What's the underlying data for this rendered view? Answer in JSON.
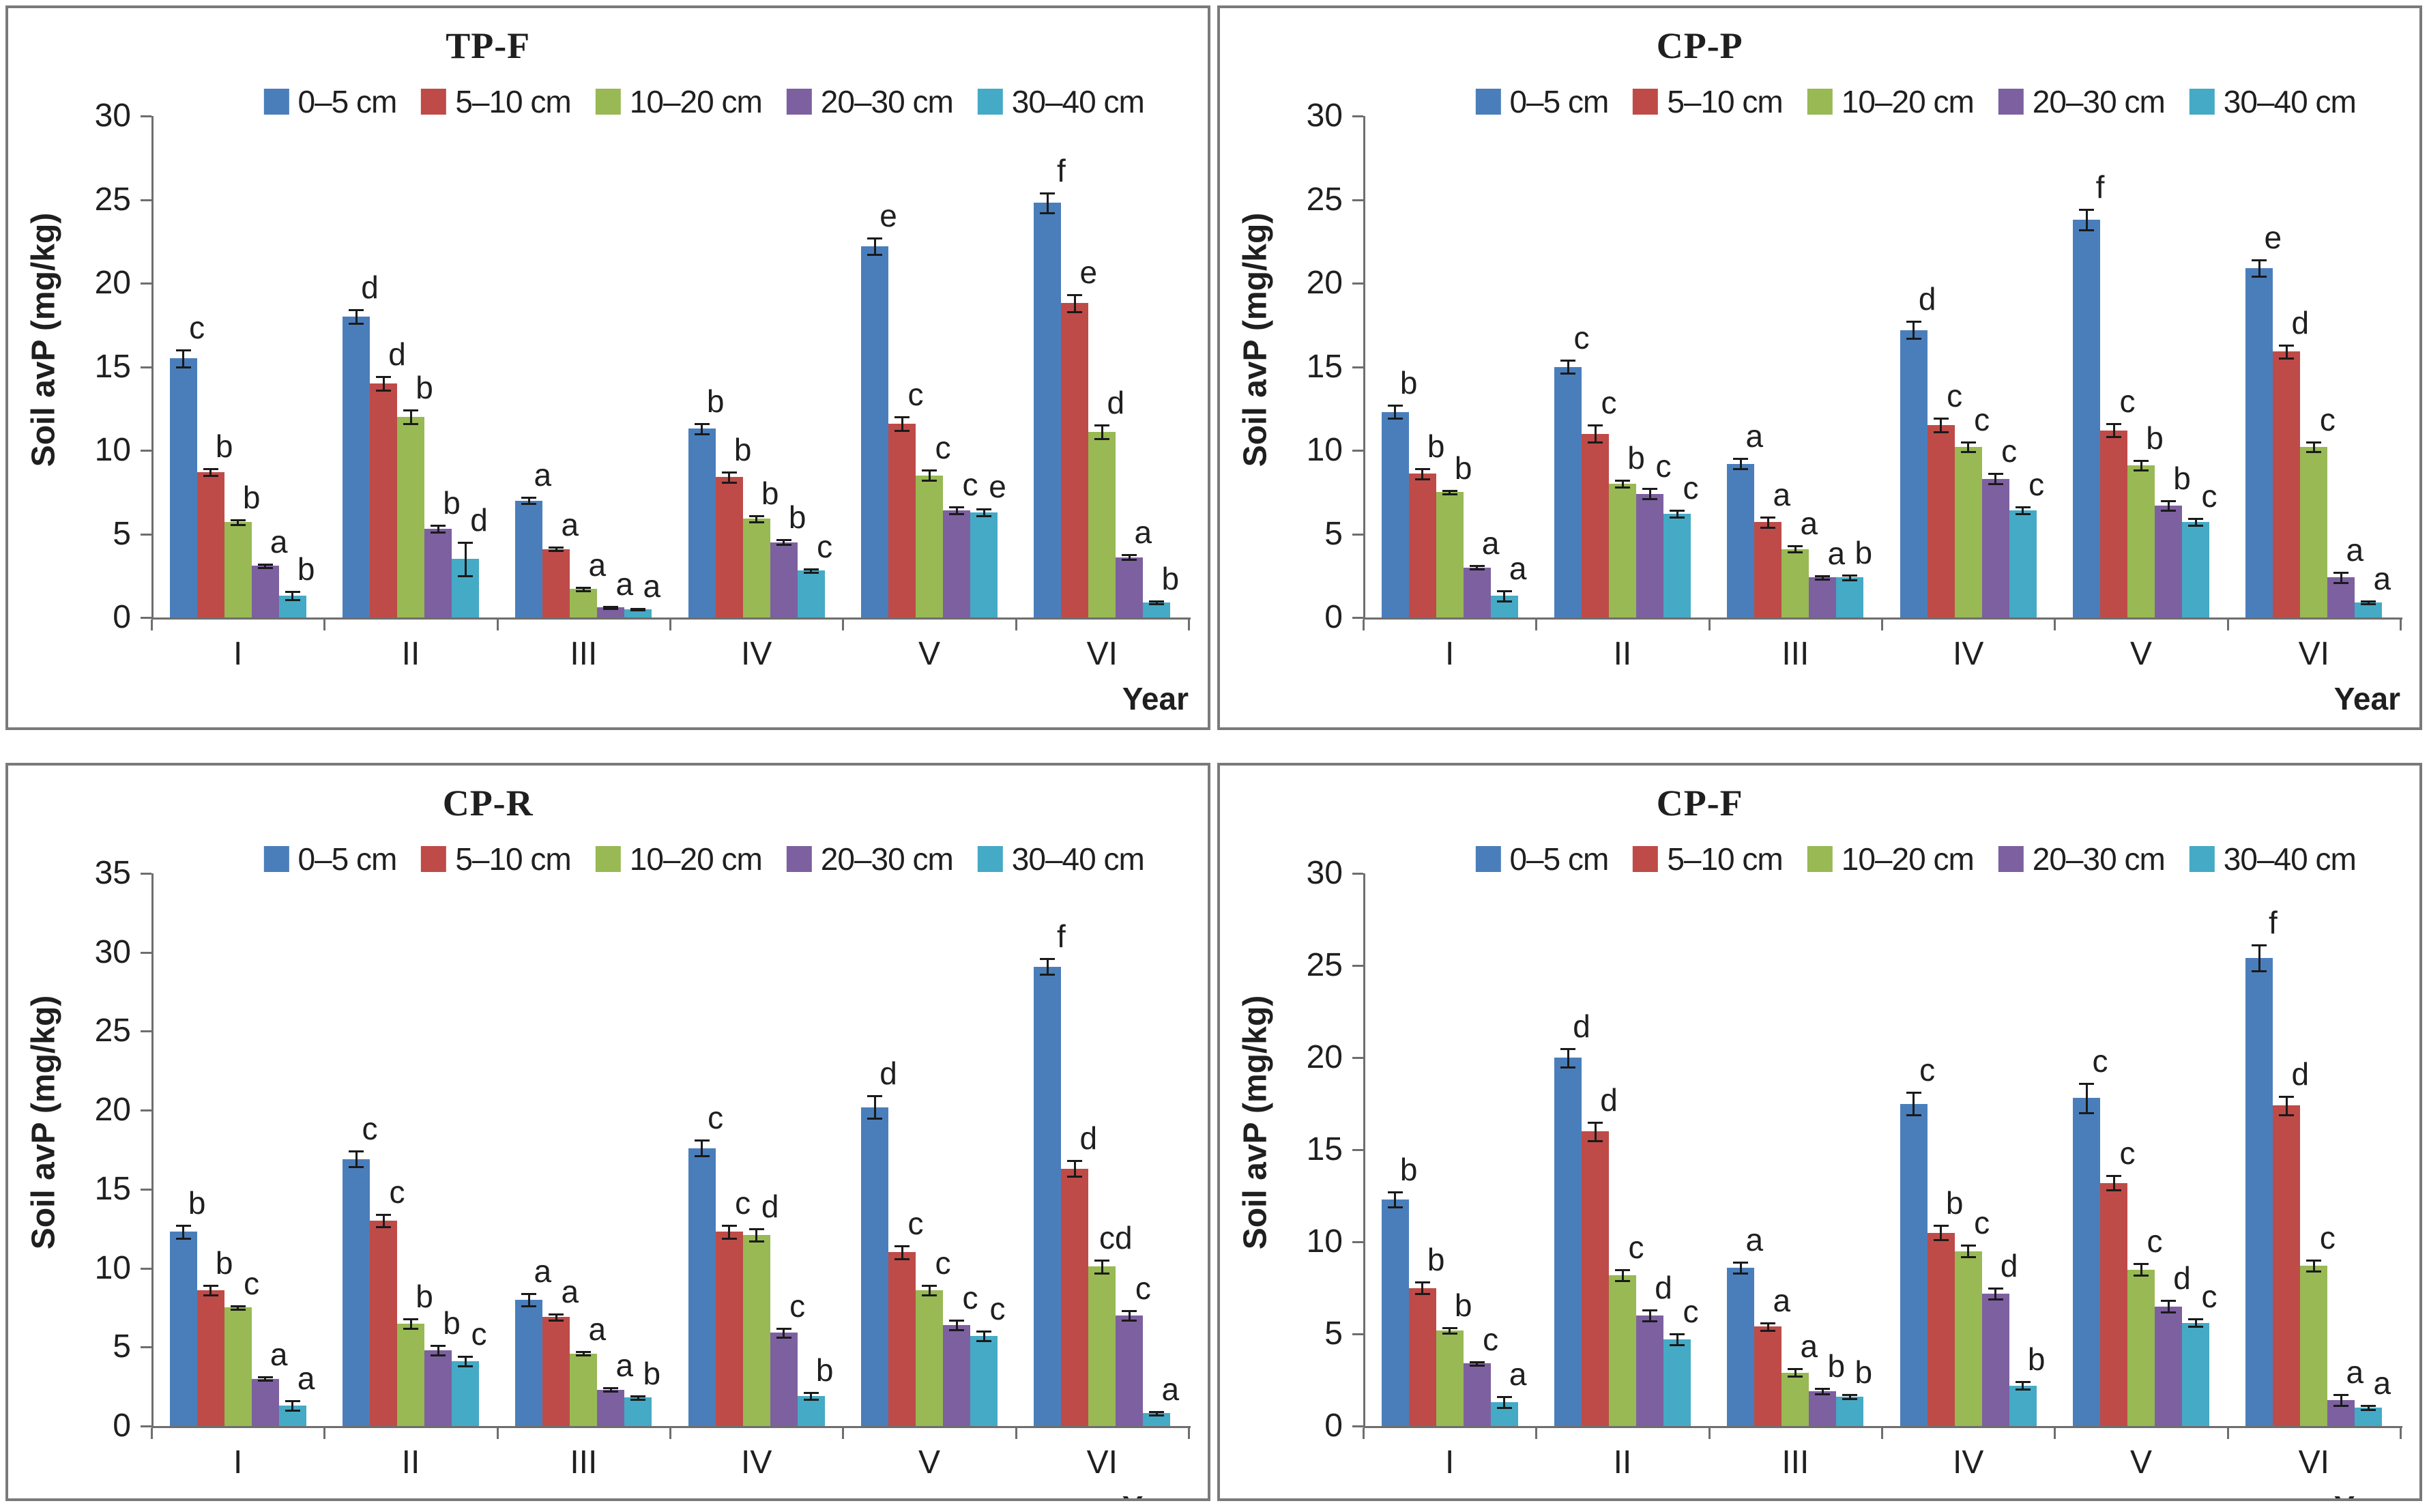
{
  "figure": {
    "background": "#ffffff",
    "panel_border_color": "#7a7a7a",
    "axis_line_color": "#6e6e6e",
    "error_bar_color": "#1a1a1a",
    "ylabel": "Soil avP (mg/kg)",
    "xlabel": "Year"
  },
  "legend": {
    "items": [
      {
        "label": "0–5 cm",
        "color": "#4A7EBB"
      },
      {
        "label": "5–10 cm",
        "color": "#BE4B48"
      },
      {
        "label": "10–20 cm",
        "color": "#98B954"
      },
      {
        "label": "20–30 cm",
        "color": "#7D60A0"
      },
      {
        "label": "30–40 cm",
        "color": "#45AAC5"
      }
    ]
  },
  "chart_data": [
    {
      "type": "bar",
      "title": "TP-F",
      "categories": [
        "I",
        "II",
        "III",
        "IV",
        "V",
        "VI"
      ],
      "ylim": [
        0,
        30
      ],
      "yticks": [
        0,
        5,
        10,
        15,
        20,
        25,
        30
      ],
      "grid": false,
      "legend_position": "top",
      "series": [
        {
          "name": "0–5 cm",
          "values": [
            15.5,
            18.0,
            7.0,
            11.3,
            22.2,
            24.8
          ],
          "errors": [
            0.5,
            0.4,
            0.2,
            0.3,
            0.5,
            0.6
          ],
          "letters": [
            "c",
            "d",
            "a",
            "b",
            "e",
            "f"
          ]
        },
        {
          "name": "5–10 cm",
          "values": [
            8.7,
            14.0,
            4.1,
            8.4,
            11.6,
            18.8
          ],
          "errors": [
            0.2,
            0.4,
            0.1,
            0.3,
            0.4,
            0.5
          ],
          "letters": [
            "b",
            "d",
            "a",
            "b",
            "c",
            "e"
          ]
        },
        {
          "name": "10–20 cm",
          "values": [
            5.7,
            12.0,
            1.7,
            5.9,
            8.5,
            11.1
          ],
          "errors": [
            0.15,
            0.4,
            0.1,
            0.2,
            0.3,
            0.4
          ],
          "letters": [
            "b",
            "b",
            "a",
            "b",
            "c",
            "d"
          ]
        },
        {
          "name": "20–30 cm",
          "values": [
            3.1,
            5.3,
            0.6,
            4.5,
            6.4,
            3.6
          ],
          "errors": [
            0.1,
            0.2,
            0.05,
            0.15,
            0.2,
            0.15
          ],
          "letters": [
            "a",
            "b",
            "a",
            "b",
            "c",
            "a"
          ]
        },
        {
          "name": "30–40 cm",
          "values": [
            1.3,
            3.5,
            0.5,
            2.8,
            6.3,
            0.9
          ],
          "errors": [
            0.25,
            1.0,
            0.05,
            0.1,
            0.2,
            0.1
          ],
          "letters": [
            "b",
            "d",
            "a",
            "c",
            "e",
            "b"
          ]
        }
      ]
    },
    {
      "type": "bar",
      "title": "CP-P",
      "categories": [
        "I",
        "II",
        "III",
        "IV",
        "V",
        "VI"
      ],
      "ylim": [
        0,
        30
      ],
      "yticks": [
        0,
        5,
        10,
        15,
        20,
        25,
        30
      ],
      "grid": false,
      "legend_position": "top",
      "series": [
        {
          "name": "0–5 cm",
          "values": [
            12.3,
            15.0,
            9.2,
            17.2,
            23.8,
            20.9
          ],
          "errors": [
            0.4,
            0.4,
            0.3,
            0.5,
            0.6,
            0.5
          ],
          "letters": [
            "b",
            "c",
            "a",
            "d",
            "f",
            "e"
          ]
        },
        {
          "name": "5–10 cm",
          "values": [
            8.6,
            11.0,
            5.7,
            11.5,
            11.2,
            15.9
          ],
          "errors": [
            0.3,
            0.5,
            0.3,
            0.4,
            0.4,
            0.4
          ],
          "letters": [
            "b",
            "c",
            "a",
            "c",
            "c",
            "d"
          ]
        },
        {
          "name": "10–20 cm",
          "values": [
            7.5,
            8.0,
            4.1,
            10.2,
            9.1,
            10.2
          ],
          "errors": [
            0.1,
            0.2,
            0.2,
            0.3,
            0.3,
            0.3
          ],
          "letters": [
            "b",
            "b",
            "a",
            "c",
            "b",
            "c"
          ]
        },
        {
          "name": "20–30 cm",
          "values": [
            3.0,
            7.4,
            2.4,
            8.3,
            6.7,
            2.4
          ],
          "errors": [
            0.1,
            0.3,
            0.1,
            0.3,
            0.3,
            0.3
          ],
          "letters": [
            "a",
            "c",
            "a",
            "c",
            "b",
            "a"
          ]
        },
        {
          "name": "30–40 cm",
          "values": [
            1.3,
            6.2,
            2.4,
            6.4,
            5.7,
            0.9
          ],
          "errors": [
            0.3,
            0.2,
            0.15,
            0.2,
            0.2,
            0.1
          ],
          "letters": [
            "a",
            "c",
            "b",
            "c",
            "c",
            "a"
          ]
        }
      ]
    },
    {
      "type": "bar",
      "title": "CP-R",
      "categories": [
        "I",
        "II",
        "III",
        "IV",
        "V",
        "VI"
      ],
      "ylim": [
        0,
        35
      ],
      "yticks": [
        0,
        5,
        10,
        15,
        20,
        25,
        30,
        35
      ],
      "grid": false,
      "legend_position": "top",
      "series": [
        {
          "name": "0–5 cm",
          "values": [
            12.3,
            16.9,
            8.0,
            17.6,
            20.2,
            29.1
          ],
          "errors": [
            0.4,
            0.5,
            0.4,
            0.5,
            0.7,
            0.5
          ],
          "letters": [
            "b",
            "c",
            "a",
            "c",
            "d",
            "f"
          ]
        },
        {
          "name": "5–10 cm",
          "values": [
            8.6,
            13.0,
            6.9,
            12.3,
            11.0,
            16.3
          ],
          "errors": [
            0.3,
            0.4,
            0.2,
            0.4,
            0.4,
            0.5
          ],
          "letters": [
            "b",
            "c",
            "a",
            "c",
            "c",
            "d"
          ]
        },
        {
          "name": "10–20 cm",
          "values": [
            7.5,
            6.5,
            4.6,
            12.1,
            8.6,
            10.1
          ],
          "errors": [
            0.1,
            0.3,
            0.1,
            0.4,
            0.3,
            0.4
          ],
          "letters": [
            "c",
            "b",
            "a",
            "d",
            "c",
            "cd"
          ]
        },
        {
          "name": "20–30 cm",
          "values": [
            3.0,
            4.8,
            2.3,
            5.9,
            6.4,
            7.0
          ],
          "errors": [
            0.1,
            0.3,
            0.1,
            0.3,
            0.3,
            0.3
          ],
          "letters": [
            "a",
            "b",
            "a",
            "c",
            "c",
            "c"
          ]
        },
        {
          "name": "30–40 cm",
          "values": [
            1.3,
            4.1,
            1.8,
            1.9,
            5.7,
            0.8
          ],
          "errors": [
            0.3,
            0.3,
            0.1,
            0.2,
            0.3,
            0.1
          ],
          "letters": [
            "a",
            "c",
            "b",
            "b",
            "c",
            "a"
          ]
        }
      ]
    },
    {
      "type": "bar",
      "title": "CP-F",
      "categories": [
        "I",
        "II",
        "III",
        "IV",
        "V",
        "VI"
      ],
      "ylim": [
        0,
        30
      ],
      "yticks": [
        0,
        5,
        10,
        15,
        20,
        25,
        30
      ],
      "grid": false,
      "legend_position": "top",
      "series": [
        {
          "name": "0–5 cm",
          "values": [
            12.3,
            20.0,
            8.6,
            17.5,
            17.8,
            25.4
          ],
          "errors": [
            0.4,
            0.5,
            0.3,
            0.6,
            0.8,
            0.7
          ],
          "letters": [
            "b",
            "d",
            "a",
            "c",
            "c",
            "f"
          ]
        },
        {
          "name": "5–10 cm",
          "values": [
            7.5,
            16.0,
            5.4,
            10.5,
            13.2,
            17.4
          ],
          "errors": [
            0.3,
            0.5,
            0.2,
            0.4,
            0.4,
            0.5
          ],
          "letters": [
            "b",
            "d",
            "a",
            "b",
            "c",
            "d"
          ]
        },
        {
          "name": "10–20 cm",
          "values": [
            5.2,
            8.2,
            2.9,
            9.5,
            8.5,
            8.7
          ],
          "errors": [
            0.15,
            0.3,
            0.2,
            0.3,
            0.3,
            0.3
          ],
          "letters": [
            "b",
            "c",
            "a",
            "c",
            "c",
            "c"
          ]
        },
        {
          "name": "20–30 cm",
          "values": [
            3.4,
            6.0,
            1.9,
            7.2,
            6.5,
            1.4
          ],
          "errors": [
            0.1,
            0.3,
            0.15,
            0.3,
            0.3,
            0.3
          ],
          "letters": [
            "c",
            "d",
            "b",
            "d",
            "d",
            "a"
          ]
        },
        {
          "name": "30–40 cm",
          "values": [
            1.3,
            4.7,
            1.6,
            2.2,
            5.6,
            1.0
          ],
          "errors": [
            0.3,
            0.3,
            0.1,
            0.2,
            0.2,
            0.1
          ],
          "letters": [
            "a",
            "c",
            "b",
            "b",
            "c",
            "a"
          ]
        }
      ]
    }
  ]
}
